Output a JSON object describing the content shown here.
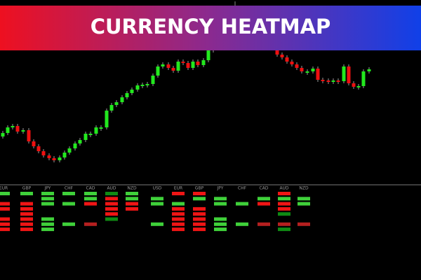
{
  "header": {
    "title": "CURRENCY HEATMAP"
  },
  "heatmap": {
    "groups": [
      {
        "labels": [
          "EUR",
          "GBP",
          "JPY",
          "CHF",
          "CAD",
          "AUD",
          "NZD"
        ]
      },
      {
        "labels": [
          "USD",
          "EUR",
          "GBP",
          "JPY",
          "CHF",
          "CAD",
          "AUD",
          "NZD"
        ]
      }
    ]
  }
}
